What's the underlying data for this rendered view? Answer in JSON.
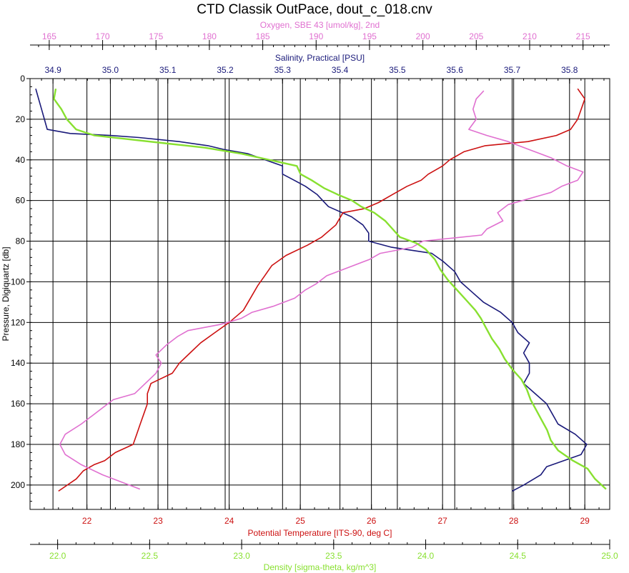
{
  "chart_data": {
    "type": "line",
    "title": "CTD Classik OutPace, dout_c_018.cnv",
    "y_axis": {
      "label": "Pressure, Digiquartz [db]",
      "range": [
        0,
        212
      ],
      "ticks": [
        0,
        20,
        40,
        60,
        80,
        100,
        120,
        140,
        160,
        180,
        200
      ],
      "tick_labels": [
        "0",
        "20",
        "40",
        "60",
        "80",
        "100",
        "120",
        "140",
        "160",
        "180",
        "200"
      ],
      "inverted": true
    },
    "grid": true,
    "x_axes": [
      {
        "id": "oxygen",
        "position": "top-outer",
        "color": "#e070d0",
        "label": "Oxygen, SBE 43 [umol/kg], 2nd",
        "range": [
          163.2,
          217.5
        ],
        "ticks": [
          165,
          170,
          175,
          180,
          185,
          190,
          195,
          200,
          205,
          210,
          215
        ],
        "tick_labels": [
          "165",
          "170",
          "175",
          "180",
          "185",
          "190",
          "195",
          "200",
          "205",
          "210",
          "215"
        ]
      },
      {
        "id": "salinity",
        "position": "top-inner",
        "color": "#1a1a7a",
        "label": "Salinity, Practical [PSU]",
        "range": [
          34.86,
          35.87
        ],
        "ticks": [
          34.9,
          35.0,
          35.1,
          35.2,
          35.3,
          35.4,
          35.5,
          35.6,
          35.7,
          35.8
        ],
        "tick_labels": [
          "34.9",
          "35.0",
          "35.1",
          "35.2",
          "35.3",
          "35.4",
          "35.5",
          "35.6",
          "35.7",
          "35.8"
        ]
      },
      {
        "id": "temperature",
        "position": "bottom-inner",
        "color": "#cc1111",
        "label": "Potential Temperature [ITS-90, deg C]",
        "range": [
          21.2,
          29.35
        ],
        "ticks": [
          22,
          23,
          24,
          25,
          26,
          27,
          28,
          29
        ],
        "tick_labels": [
          "22",
          "23",
          "24",
          "25",
          "26",
          "27",
          "28",
          "29"
        ],
        "grid": true
      },
      {
        "id": "density",
        "position": "bottom-outer",
        "color": "#88e030",
        "label": "Density [sigma-theta, kg/m^3]",
        "range": [
          21.85,
          25.0
        ],
        "ticks": [
          22.0,
          22.5,
          23.0,
          23.5,
          24.0,
          24.5,
          25.0
        ],
        "tick_labels": [
          "22.0",
          "22.5",
          "23.0",
          "23.5",
          "24.0",
          "24.5",
          "25.0"
        ]
      }
    ],
    "series": [
      {
        "axis": "salinity",
        "color": "#1a1a7a",
        "points": [
          [
            34.87,
            5
          ],
          [
            34.875,
            10
          ],
          [
            34.88,
            15
          ],
          [
            34.885,
            20
          ],
          [
            34.89,
            25
          ],
          [
            34.93,
            27
          ],
          [
            35.0,
            28
          ],
          [
            35.05,
            29
          ],
          [
            35.12,
            31
          ],
          [
            35.17,
            33
          ],
          [
            35.2,
            35
          ],
          [
            35.24,
            37
          ],
          [
            35.27,
            40
          ],
          [
            35.3,
            43
          ],
          [
            35.3,
            47
          ],
          [
            35.32,
            50
          ],
          [
            35.34,
            53
          ],
          [
            35.36,
            57
          ],
          [
            35.37,
            60
          ],
          [
            35.38,
            63
          ],
          [
            35.42,
            68
          ],
          [
            35.44,
            72
          ],
          [
            35.45,
            76
          ],
          [
            35.45,
            80
          ],
          [
            35.49,
            83
          ],
          [
            35.56,
            86
          ],
          [
            35.58,
            90
          ],
          [
            35.6,
            95
          ],
          [
            35.61,
            100
          ],
          [
            35.63,
            105
          ],
          [
            35.65,
            110
          ],
          [
            35.68,
            115
          ],
          [
            35.7,
            120
          ],
          [
            35.71,
            125
          ],
          [
            35.73,
            130
          ],
          [
            35.72,
            135
          ],
          [
            35.73,
            140
          ],
          [
            35.73,
            145
          ],
          [
            35.72,
            150
          ],
          [
            35.74,
            155
          ],
          [
            35.76,
            160
          ],
          [
            35.77,
            165
          ],
          [
            35.78,
            170
          ],
          [
            35.81,
            175
          ],
          [
            35.83,
            180
          ],
          [
            35.82,
            185
          ],
          [
            35.79,
            188
          ],
          [
            35.76,
            191
          ],
          [
            35.75,
            195
          ],
          [
            35.72,
            200
          ],
          [
            35.7,
            203
          ]
        ]
      },
      {
        "axis": "temperature",
        "color": "#cc1111",
        "points": [
          [
            28.9,
            5
          ],
          [
            29.0,
            10
          ],
          [
            28.95,
            15
          ],
          [
            28.9,
            20
          ],
          [
            28.8,
            25
          ],
          [
            28.6,
            28
          ],
          [
            28.2,
            31
          ],
          [
            27.6,
            33
          ],
          [
            27.3,
            36
          ],
          [
            27.1,
            40
          ],
          [
            27.0,
            43
          ],
          [
            26.8,
            47
          ],
          [
            26.7,
            50
          ],
          [
            26.5,
            53
          ],
          [
            26.3,
            57
          ],
          [
            26.1,
            61
          ],
          [
            25.9,
            64
          ],
          [
            25.6,
            66
          ],
          [
            25.5,
            72
          ],
          [
            25.3,
            78
          ],
          [
            25.1,
            82
          ],
          [
            24.8,
            87
          ],
          [
            24.6,
            92
          ],
          [
            24.5,
            97
          ],
          [
            24.4,
            102
          ],
          [
            24.3,
            108
          ],
          [
            24.2,
            114
          ],
          [
            24.0,
            120
          ],
          [
            23.8,
            125
          ],
          [
            23.6,
            130
          ],
          [
            23.45,
            135
          ],
          [
            23.3,
            140
          ],
          [
            23.2,
            145
          ],
          [
            22.9,
            150
          ],
          [
            22.85,
            155
          ],
          [
            22.85,
            160
          ],
          [
            22.8,
            165
          ],
          [
            22.75,
            170
          ],
          [
            22.7,
            175
          ],
          [
            22.65,
            180
          ],
          [
            22.4,
            184
          ],
          [
            22.25,
            188
          ],
          [
            22.1,
            190
          ],
          [
            21.95,
            193
          ],
          [
            21.85,
            197
          ],
          [
            21.6,
            203
          ]
        ]
      },
      {
        "axis": "oxygen",
        "color": "#e070d0",
        "points": [
          [
            205.7,
            6
          ],
          [
            205.0,
            10
          ],
          [
            204.7,
            15
          ],
          [
            205.0,
            20
          ],
          [
            204.3,
            25
          ],
          [
            206.0,
            28
          ],
          [
            208.0,
            31
          ],
          [
            210.0,
            35
          ],
          [
            212.0,
            39
          ],
          [
            213.5,
            43
          ],
          [
            215.0,
            46
          ],
          [
            214.5,
            50
          ],
          [
            213.0,
            53
          ],
          [
            212.0,
            56
          ],
          [
            210.0,
            59
          ],
          [
            208.0,
            62
          ],
          [
            207.0,
            66
          ],
          [
            207.5,
            70
          ],
          [
            206.0,
            74
          ],
          [
            205.5,
            77
          ],
          [
            200.0,
            80
          ],
          [
            199.0,
            83
          ],
          [
            196.0,
            86
          ],
          [
            195.0,
            89
          ],
          [
            193.0,
            93
          ],
          [
            191.0,
            97
          ],
          [
            190.0,
            101
          ],
          [
            189.0,
            104
          ],
          [
            188.0,
            108
          ],
          [
            186.0,
            112
          ],
          [
            184.0,
            115
          ],
          [
            183.0,
            118
          ],
          [
            181.0,
            121
          ],
          [
            178.0,
            124
          ],
          [
            177.0,
            127
          ],
          [
            176.0,
            131
          ],
          [
            175.0,
            136
          ],
          [
            175.5,
            140
          ],
          [
            175.0,
            145
          ],
          [
            174.0,
            150
          ],
          [
            173.0,
            155
          ],
          [
            171.0,
            158
          ],
          [
            170.0,
            162
          ],
          [
            169.0,
            166
          ],
          [
            168.0,
            170
          ],
          [
            166.5,
            175
          ],
          [
            166.0,
            180
          ],
          [
            166.5,
            185
          ],
          [
            168.0,
            190
          ],
          [
            170.0,
            195
          ],
          [
            172.0,
            199
          ],
          [
            173.5,
            202
          ]
        ]
      },
      {
        "axis": "density",
        "color": "#88e030",
        "points": [
          [
            21.99,
            5
          ],
          [
            21.98,
            10
          ],
          [
            22.02,
            15
          ],
          [
            22.05,
            20
          ],
          [
            22.1,
            25
          ],
          [
            22.2,
            28
          ],
          [
            22.4,
            30
          ],
          [
            22.6,
            32
          ],
          [
            22.8,
            34
          ],
          [
            23.0,
            37
          ],
          [
            23.2,
            41
          ],
          [
            23.3,
            43
          ],
          [
            23.32,
            47
          ],
          [
            23.38,
            50
          ],
          [
            23.45,
            54
          ],
          [
            23.52,
            57
          ],
          [
            23.6,
            60
          ],
          [
            23.65,
            63
          ],
          [
            23.72,
            66
          ],
          [
            23.78,
            70
          ],
          [
            23.82,
            74
          ],
          [
            23.86,
            78
          ],
          [
            23.95,
            81
          ],
          [
            24.0,
            84
          ],
          [
            24.05,
            89
          ],
          [
            24.08,
            94
          ],
          [
            24.12,
            99
          ],
          [
            24.17,
            104
          ],
          [
            24.22,
            109
          ],
          [
            24.27,
            114
          ],
          [
            24.3,
            118
          ],
          [
            24.33,
            123
          ],
          [
            24.36,
            128
          ],
          [
            24.4,
            133
          ],
          [
            24.43,
            138
          ],
          [
            24.47,
            143
          ],
          [
            24.52,
            148
          ],
          [
            24.55,
            153
          ],
          [
            24.57,
            158
          ],
          [
            24.6,
            163
          ],
          [
            24.63,
            168
          ],
          [
            24.66,
            173
          ],
          [
            24.68,
            178
          ],
          [
            24.72,
            183
          ],
          [
            24.8,
            188
          ],
          [
            24.88,
            192
          ],
          [
            24.92,
            197
          ],
          [
            24.98,
            202
          ]
        ]
      }
    ]
  }
}
